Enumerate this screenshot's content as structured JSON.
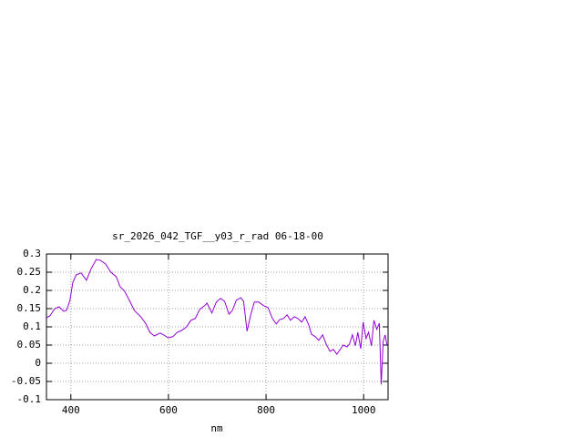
{
  "chart_data": {
    "type": "line",
    "title": "sr_2026_042_TGF__y03_r_rad 06-18-00",
    "x_label": "nm",
    "x": [
      350,
      357,
      367,
      376,
      385,
      391,
      398,
      404,
      411,
      421,
      432,
      441,
      452,
      460,
      471,
      482,
      493,
      501,
      510,
      521,
      530,
      543,
      553,
      562,
      571,
      583,
      590,
      599,
      609,
      618,
      627,
      637,
      646,
      655,
      664,
      674,
      679,
      689,
      698,
      707,
      715,
      724,
      731,
      739,
      748,
      754,
      761,
      769,
      776,
      785,
      795,
      804,
      813,
      821,
      828,
      836,
      843,
      850,
      858,
      865,
      873,
      880,
      888,
      893,
      901,
      908,
      916,
      923,
      931,
      938,
      945,
      953,
      958,
      966,
      971,
      977,
      983,
      988,
      994,
      999,
      1005,
      1010,
      1016,
      1021,
      1027,
      1032,
      1036,
      1040,
      1044,
      1048
    ],
    "series": [
      {
        "color": "#9400d3",
        "values": [
          0.125,
          0.13,
          0.15,
          0.155,
          0.143,
          0.145,
          0.172,
          0.222,
          0.243,
          0.248,
          0.228,
          0.258,
          0.285,
          0.283,
          0.273,
          0.25,
          0.238,
          0.21,
          0.198,
          0.17,
          0.145,
          0.128,
          0.11,
          0.085,
          0.075,
          0.083,
          0.078,
          0.07,
          0.073,
          0.085,
          0.09,
          0.1,
          0.118,
          0.123,
          0.148,
          0.158,
          0.165,
          0.138,
          0.168,
          0.178,
          0.17,
          0.135,
          0.145,
          0.173,
          0.18,
          0.17,
          0.088,
          0.135,
          0.168,
          0.168,
          0.158,
          0.153,
          0.123,
          0.108,
          0.12,
          0.123,
          0.133,
          0.118,
          0.128,
          0.123,
          0.113,
          0.128,
          0.103,
          0.08,
          0.073,
          0.063,
          0.078,
          0.053,
          0.033,
          0.038,
          0.025,
          0.04,
          0.05,
          0.045,
          0.053,
          0.078,
          0.048,
          0.085,
          0.04,
          0.113,
          0.068,
          0.085,
          0.048,
          0.118,
          0.093,
          0.11,
          -0.058,
          0.06,
          0.078,
          0.048
        ]
      }
    ],
    "xlim": [
      350,
      1050
    ],
    "xticks": [
      400,
      600,
      800,
      1000
    ],
    "ylim": [
      -0.1,
      0.3
    ],
    "yticks": [
      0.3,
      0.25,
      0.2,
      0.15,
      0.1,
      0.05,
      0,
      -0.05,
      -0.1
    ],
    "grid": true
  }
}
